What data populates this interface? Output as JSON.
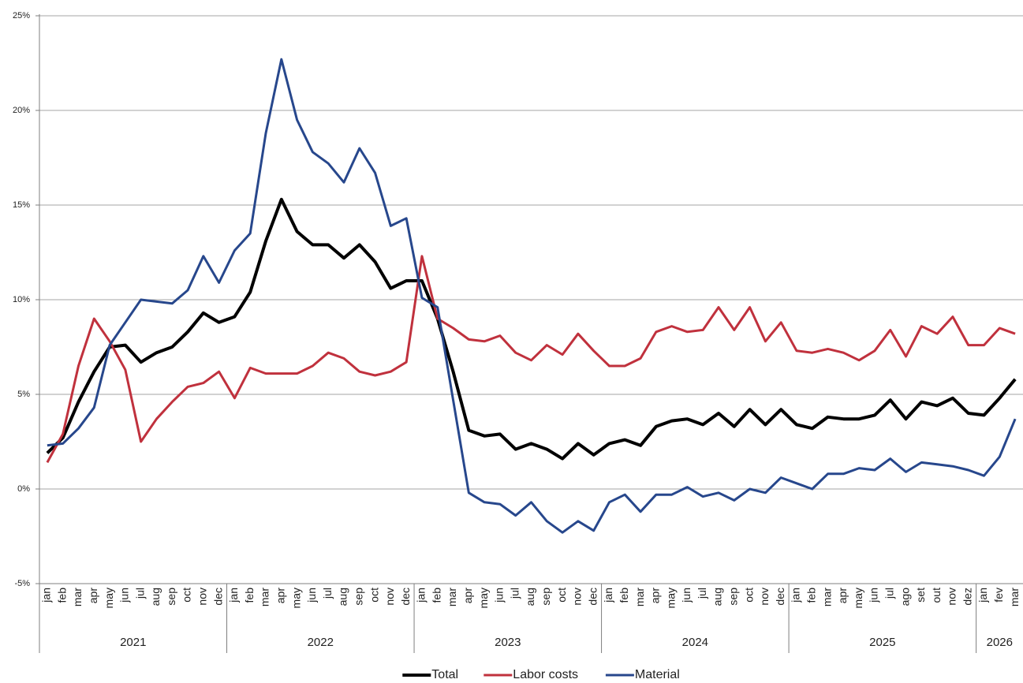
{
  "chart_data": {
    "type": "line",
    "categories": [
      "jan",
      "feb",
      "mar",
      "apr",
      "may",
      "jun",
      "jul",
      "aug",
      "sep",
      "oct",
      "nov",
      "dec",
      "jan",
      "feb",
      "mar",
      "apr",
      "may",
      "jun",
      "jul",
      "aug",
      "sep",
      "oct",
      "nov",
      "dec",
      "jan",
      "feb",
      "mar",
      "apr",
      "may",
      "jun",
      "jul",
      "aug",
      "sep",
      "oct",
      "nov",
      "dec",
      "jan",
      "feb",
      "mar",
      "apr",
      "may",
      "jun",
      "jul",
      "aug",
      "sep",
      "oct",
      "nov",
      "dec",
      "jan",
      "feb",
      "mar",
      "apr",
      "may",
      "jun",
      "jul",
      "ago",
      "set",
      "out",
      "nov",
      "dez",
      "jan",
      "fev",
      "mar"
    ],
    "years": [
      "2021",
      "2022",
      "2023",
      "2024",
      "2025",
      "2026"
    ],
    "series": [
      {
        "name": "Total",
        "color": "#000000",
        "values": [
          1.9,
          2.7,
          4.6,
          6.2,
          7.5,
          7.6,
          6.7,
          7.2,
          7.5,
          8.3,
          9.3,
          8.8,
          9.1,
          10.4,
          13.1,
          15.3,
          13.6,
          12.9,
          12.9,
          12.2,
          12.9,
          12.0,
          10.6,
          11.0,
          11.0,
          9.0,
          6.2,
          3.1,
          2.8,
          2.9,
          2.1,
          2.4,
          2.1,
          1.6,
          2.4,
          1.8,
          2.4,
          2.6,
          2.3,
          3.3,
          3.6,
          3.7,
          3.4,
          4.0,
          3.3,
          4.2,
          3.4,
          4.2,
          3.4,
          3.2,
          3.8,
          3.7,
          3.7,
          3.9,
          4.7,
          3.7,
          4.6,
          4.4,
          4.8,
          4.0,
          3.9,
          4.8,
          5.8
        ]
      },
      {
        "name": "Labor costs",
        "color": "#c0313d",
        "values": [
          1.4,
          2.9,
          6.5,
          9.0,
          7.8,
          6.3,
          2.5,
          3.7,
          4.6,
          5.4,
          5.6,
          6.2,
          4.8,
          6.4,
          6.1,
          6.1,
          6.1,
          6.5,
          7.2,
          6.9,
          6.2,
          6.0,
          6.2,
          6.7,
          12.3,
          9.0,
          8.5,
          7.9,
          7.8,
          8.1,
          7.2,
          6.8,
          7.6,
          7.1,
          8.2,
          7.3,
          6.5,
          6.5,
          6.9,
          8.3,
          8.6,
          8.3,
          8.4,
          9.6,
          8.4,
          9.6,
          7.8,
          8.8,
          7.3,
          7.2,
          7.4,
          7.2,
          6.8,
          7.3,
          8.4,
          7.0,
          8.6,
          8.2,
          9.1,
          7.6,
          7.6,
          8.5,
          8.2
        ]
      },
      {
        "name": "Material",
        "color": "#27478c",
        "values": [
          2.3,
          2.4,
          3.2,
          4.3,
          7.6,
          8.8,
          10.0,
          9.9,
          9.8,
          10.5,
          12.3,
          10.9,
          12.6,
          13.5,
          18.8,
          22.7,
          19.5,
          17.8,
          17.2,
          16.2,
          18.0,
          16.7,
          13.9,
          14.3,
          10.1,
          9.6,
          4.7,
          -0.2,
          -0.7,
          -0.8,
          -1.4,
          -0.7,
          -1.7,
          -2.3,
          -1.7,
          -2.2,
          -0.7,
          -0.3,
          -1.2,
          -0.3,
          -0.3,
          0.1,
          -0.4,
          -0.2,
          -0.6,
          0.0,
          -0.2,
          0.6,
          0.3,
          0.0,
          0.8,
          0.8,
          1.1,
          1.0,
          1.6,
          0.9,
          1.4,
          1.3,
          1.2,
          1.0,
          0.7,
          1.7,
          3.7
        ]
      }
    ],
    "ylim": [
      -5,
      25
    ],
    "yticks": [
      {
        "value": -5,
        "label": "-5%"
      },
      {
        "value": 0,
        "label": "0%"
      },
      {
        "value": 5,
        "label": "5%"
      },
      {
        "value": 10,
        "label": "10%"
      },
      {
        "value": 15,
        "label": "15%"
      },
      {
        "value": 20,
        "label": "20%"
      },
      {
        "value": 25,
        "label": "25%"
      }
    ],
    "grid": true,
    "legend": "bottom"
  }
}
